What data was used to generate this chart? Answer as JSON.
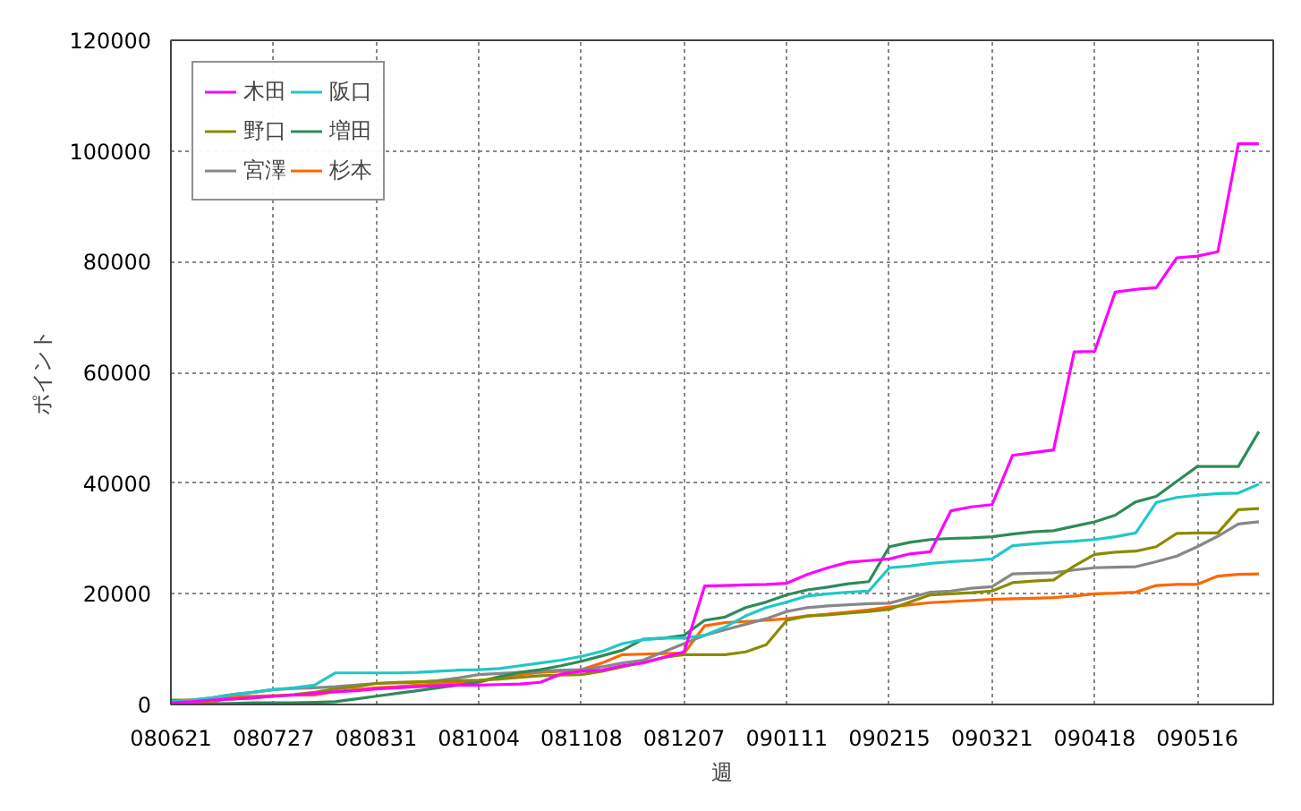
{
  "chart_data": {
    "type": "line",
    "xlabel": "週",
    "ylabel": "ポイント",
    "categories": [
      "080621",
      null,
      null,
      null,
      null,
      "080727",
      null,
      null,
      null,
      null,
      "080831",
      null,
      null,
      null,
      null,
      "081004",
      null,
      null,
      null,
      null,
      "081108",
      null,
      null,
      null,
      null,
      "081207",
      null,
      null,
      null,
      null,
      "090111",
      null,
      null,
      null,
      null,
      "090215",
      null,
      null,
      null,
      null,
      "090321",
      null,
      null,
      null,
      null,
      "090418",
      null,
      null,
      null,
      null,
      "090516",
      null,
      null,
      null
    ],
    "ylim": [
      0,
      120000
    ],
    "yticks": [
      0,
      20000,
      40000,
      60000,
      80000,
      100000,
      120000
    ],
    "grid": true,
    "legend": "top left",
    "line_style": "solid",
    "series": [
      {
        "name": "木田",
        "color": "#ff00ff",
        "values": [
          300,
          500,
          800,
          1000,
          1200,
          1500,
          1700,
          2000,
          2300,
          2500,
          2800,
          3000,
          3200,
          3400,
          3500,
          3500,
          3600,
          3700,
          4000,
          5500,
          6000,
          6200,
          7000,
          7500,
          8500,
          9500,
          21400,
          21500,
          21600,
          21700,
          21900,
          23500,
          24700,
          25700,
          26000,
          26300,
          27200,
          27600,
          35000,
          35700,
          36100,
          45000,
          45500,
          46000,
          63700,
          63800,
          74500,
          75000,
          75300,
          80700,
          81000,
          81800,
          101300,
          101300
        ]
      },
      {
        "name": "阪口",
        "color": "#20c8c8",
        "values": [
          500,
          800,
          1200,
          1800,
          2200,
          2700,
          3000,
          3500,
          5700,
          5700,
          5700,
          5700,
          5800,
          6000,
          6200,
          6300,
          6500,
          7000,
          7500,
          8000,
          8700,
          9600,
          11000,
          11700,
          12000,
          12000,
          12500,
          14000,
          16000,
          17500,
          18500,
          19600,
          20000,
          20300,
          20500,
          24700,
          25000,
          25500,
          25800,
          26000,
          26300,
          28700,
          29000,
          29300,
          29500,
          29800,
          30300,
          31000,
          36500,
          37400,
          37800,
          38100,
          38200,
          39800
        ]
      },
      {
        "name": "野口",
        "color": "#8b8b00",
        "values": [
          800,
          800,
          900,
          1000,
          1200,
          1500,
          1800,
          2200,
          2800,
          3200,
          3800,
          4000,
          4100,
          4200,
          4300,
          4400,
          4600,
          4900,
          5200,
          5300,
          5400,
          6000,
          6800,
          7600,
          8500,
          9000,
          9000,
          9000,
          9500,
          10800,
          15200,
          16000,
          16200,
          16500,
          16800,
          17200,
          18500,
          19800,
          20000,
          20200,
          20500,
          22000,
          22300,
          22500,
          25000,
          27100,
          27500,
          27700,
          28500,
          30900,
          31000,
          31000,
          35200,
          35400
        ]
      },
      {
        "name": "増田",
        "color": "#2e8b57",
        "values": [
          0,
          0,
          100,
          200,
          300,
          300,
          300,
          400,
          500,
          1000,
          1500,
          2000,
          2500,
          3000,
          3500,
          4100,
          5000,
          5800,
          6300,
          7000,
          7800,
          8800,
          9800,
          11800,
          12000,
          12500,
          15200,
          15800,
          17500,
          18500,
          19800,
          20700,
          21200,
          21800,
          22200,
          28500,
          29300,
          29800,
          30000,
          30100,
          30300,
          30800,
          31200,
          31400,
          32200,
          33000,
          34200,
          36600,
          37600,
          40300,
          43000,
          43000,
          43000,
          49300
        ]
      },
      {
        "name": "宮澤",
        "color": "#888888",
        "values": [
          500,
          800,
          1200,
          1800,
          2200,
          2700,
          2900,
          3000,
          3200,
          3500,
          3800,
          3900,
          4000,
          4300,
          4800,
          5400,
          5600,
          5800,
          6000,
          6200,
          6300,
          6800,
          7500,
          8000,
          9500,
          11000,
          12500,
          13500,
          14500,
          15500,
          16800,
          17500,
          17800,
          18000,
          18200,
          18300,
          19300,
          20300,
          20500,
          21000,
          21300,
          23600,
          23700,
          23800,
          24300,
          24700,
          24800,
          24900,
          25800,
          26800,
          28500,
          30400,
          32600,
          33000
        ]
      },
      {
        "name": "杉本",
        "color": "#ff6600",
        "values": [
          300,
          300,
          300,
          1500,
          1500,
          1600,
          1700,
          1700,
          2300,
          2700,
          3000,
          3200,
          3500,
          3700,
          3900,
          4000,
          5000,
          5400,
          5800,
          6000,
          6300,
          7500,
          9000,
          9100,
          9200,
          9300,
          14200,
          14800,
          15000,
          15200,
          15500,
          16000,
          16300,
          16700,
          17100,
          17600,
          18000,
          18400,
          18600,
          18800,
          19000,
          19100,
          19200,
          19300,
          19600,
          20000,
          20100,
          20300,
          21500,
          21700,
          21700,
          23200,
          23500,
          23600
        ]
      }
    ]
  }
}
